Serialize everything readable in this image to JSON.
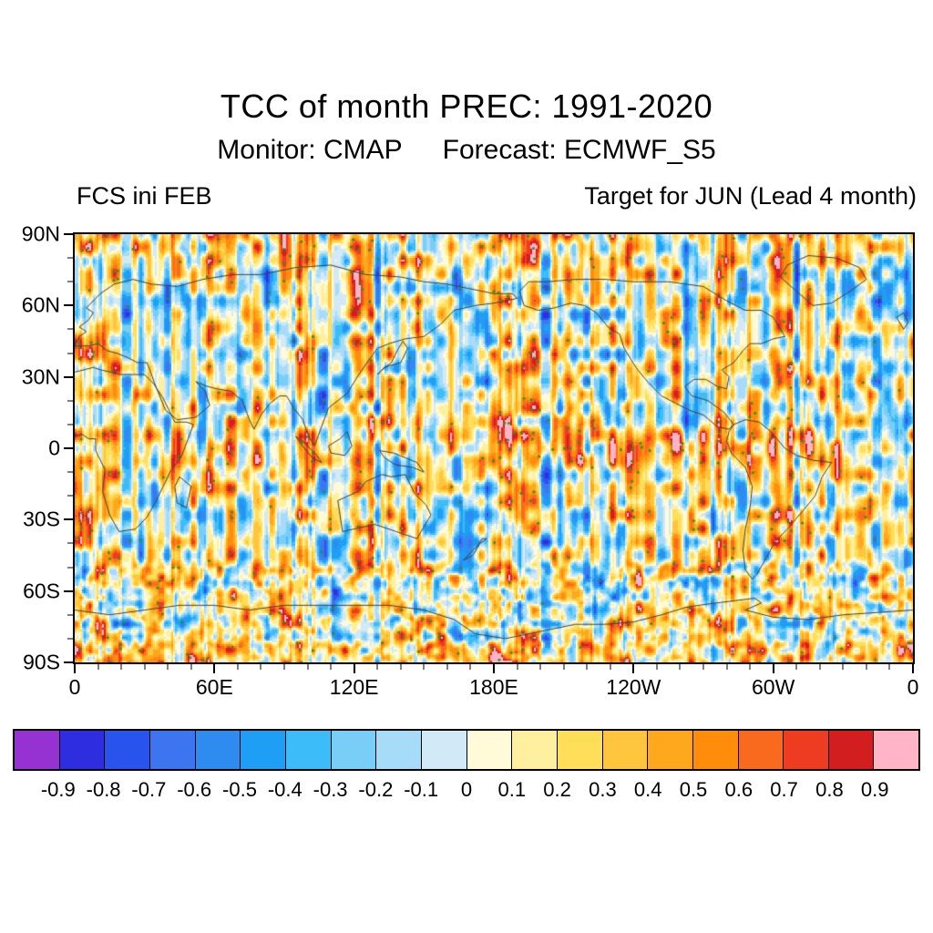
{
  "title": "TCC of month PREC: 1991-2020",
  "subtitle": {
    "monitor": "Monitor: CMAP",
    "forecast": "Forecast: ECMWF_S5"
  },
  "panel": {
    "init_label": "FCS ini FEB",
    "target_label": "Target for JUN (Lead 4 month)"
  },
  "chart_data": {
    "type": "heatmap",
    "subtype": "filled-contour-global-map",
    "projection": "equirectangular",
    "lon_range": [
      0,
      360
    ],
    "lat_range": [
      -90,
      90
    ],
    "x_ticks": [
      {
        "lon": 0,
        "label": "0"
      },
      {
        "lon": 60,
        "label": "60E"
      },
      {
        "lon": 120,
        "label": "120E"
      },
      {
        "lon": 180,
        "label": "180E"
      },
      {
        "lon": 240,
        "label": "120W"
      },
      {
        "lon": 300,
        "label": "60W"
      },
      {
        "lon": 360,
        "label": "0"
      }
    ],
    "y_ticks": [
      {
        "lat": 90,
        "label": "90N"
      },
      {
        "lat": 60,
        "label": "60N"
      },
      {
        "lat": 30,
        "label": "30N"
      },
      {
        "lat": 0,
        "label": "0"
      },
      {
        "lat": -30,
        "label": "30S"
      },
      {
        "lat": -60,
        "label": "60S"
      },
      {
        "lat": -90,
        "label": "90S"
      }
    ],
    "colorbar": {
      "levels": [
        -0.9,
        -0.8,
        -0.7,
        -0.6,
        -0.5,
        -0.4,
        -0.3,
        -0.2,
        -0.1,
        0,
        0.1,
        0.2,
        0.3,
        0.4,
        0.5,
        0.6,
        0.7,
        0.8,
        0.9
      ],
      "labels": [
        "-0.9",
        "-0.8",
        "-0.7",
        "-0.6",
        "-0.5",
        "-0.4",
        "-0.3",
        "-0.2",
        "-0.1",
        "0",
        "0.1",
        "0.2",
        "0.3",
        "0.4",
        "0.5",
        "0.6",
        "0.7",
        "0.8",
        "0.9"
      ],
      "colors": [
        "#9632D2",
        "#2E2EE0",
        "#2853EC",
        "#3D74F0",
        "#2E8CF0",
        "#1E9EF5",
        "#3CBCF8",
        "#79CEF8",
        "#A6DCF7",
        "#D2EAF8",
        "#FFFBD8",
        "#FFF0A0",
        "#FFDE5A",
        "#FFC53C",
        "#FFA81E",
        "#FF8C0A",
        "#F96A1E",
        "#EE3C23",
        "#D21E1E",
        "#FFB4C8"
      ]
    },
    "stipple": {
      "color": "#1E9B1E"
    },
    "coastline_color": "#404040",
    "field_summary": "Temporal correlation coefficient of monthly precipitation: strong positive (red) band along the equatorial Pacific extending into the Atlantic, mostly weak-positive (yellow/orange) values elsewhere with scattered negative (blue) patches; green stippling over high-magnitude regions",
    "coastlines": [
      [
        [
          0,
          32
        ],
        [
          8,
          34
        ],
        [
          11,
          33
        ],
        [
          20,
          31
        ],
        [
          30,
          31
        ],
        [
          32,
          29
        ],
        [
          34,
          27
        ],
        [
          38,
          21
        ],
        [
          43,
          11
        ],
        [
          48,
          11
        ],
        [
          51,
          10
        ],
        [
          46,
          -3
        ],
        [
          41,
          -10
        ],
        [
          38,
          -16
        ],
        [
          35,
          -22
        ],
        [
          31,
          -29
        ],
        [
          26,
          -34
        ],
        [
          19,
          -35
        ],
        [
          15,
          -28
        ],
        [
          12,
          -18
        ],
        [
          13,
          -9
        ],
        [
          9,
          -1
        ],
        [
          9,
          4
        ],
        [
          6,
          4
        ],
        [
          3,
          6
        ],
        [
          0,
          5
        ]
      ],
      [
        [
          0,
          43
        ],
        [
          2,
          47
        ],
        [
          5,
          49
        ],
        [
          2,
          51
        ],
        [
          6,
          54
        ],
        [
          8,
          57
        ],
        [
          5,
          59
        ],
        [
          11,
          65
        ],
        [
          17,
          69
        ],
        [
          25,
          71
        ],
        [
          33,
          69
        ],
        [
          44,
          68
        ],
        [
          55,
          71
        ],
        [
          68,
          73
        ],
        [
          80,
          73
        ],
        [
          95,
          76
        ],
        [
          110,
          77
        ],
        [
          125,
          73
        ],
        [
          140,
          72
        ],
        [
          150,
          70
        ],
        [
          160,
          69
        ],
        [
          170,
          67
        ],
        [
          180,
          65
        ],
        [
          188,
          65
        ],
        [
          190,
          63
        ],
        [
          180,
          61
        ],
        [
          172,
          60
        ],
        [
          163,
          58
        ],
        [
          157,
          52
        ],
        [
          150,
          47
        ],
        [
          142,
          46
        ],
        [
          135,
          44
        ],
        [
          130,
          42
        ],
        [
          127,
          38
        ],
        [
          122,
          31
        ],
        [
          117,
          23
        ],
        [
          109,
          17
        ],
        [
          106,
          9
        ],
        [
          103,
          1
        ],
        [
          100,
          6
        ],
        [
          98,
          12
        ],
        [
          94,
          17
        ],
        [
          91,
          22
        ],
        [
          88,
          22
        ],
        [
          84,
          19
        ],
        [
          80,
          14
        ],
        [
          77,
          8
        ],
        [
          75,
          12
        ],
        [
          72,
          20
        ],
        [
          67,
          24
        ],
        [
          61,
          25
        ],
        [
          57,
          26
        ],
        [
          52,
          28
        ],
        [
          56,
          24
        ],
        [
          58,
          18
        ],
        [
          52,
          13
        ],
        [
          44,
          12
        ],
        [
          39,
          16
        ],
        [
          34,
          28
        ],
        [
          33,
          31
        ],
        [
          31,
          36
        ],
        [
          27,
          36
        ],
        [
          23,
          38
        ],
        [
          18,
          40
        ],
        [
          14,
          41
        ],
        [
          10,
          44
        ],
        [
          6,
          43
        ],
        [
          3,
          43
        ],
        [
          0,
          43
        ]
      ],
      [
        [
          113,
          -22
        ],
        [
          115,
          -35
        ],
        [
          129,
          -32
        ],
        [
          138,
          -35
        ],
        [
          147,
          -38
        ],
        [
          153,
          -28
        ],
        [
          151,
          -24
        ],
        [
          146,
          -19
        ],
        [
          142,
          -11
        ],
        [
          136,
          -12
        ],
        [
          132,
          -11
        ],
        [
          125,
          -14
        ],
        [
          122,
          -18
        ],
        [
          113,
          -22
        ]
      ],
      [
        [
          191,
          66
        ],
        [
          193,
          60
        ],
        [
          199,
          58
        ],
        [
          206,
          59
        ],
        [
          213,
          61
        ],
        [
          219,
          60
        ],
        [
          224,
          57
        ],
        [
          229,
          51
        ],
        [
          234,
          48
        ],
        [
          236,
          42
        ],
        [
          241,
          34
        ],
        [
          246,
          28
        ],
        [
          252,
          22
        ],
        [
          258,
          19
        ],
        [
          264,
          16
        ],
        [
          270,
          14
        ],
        [
          276,
          9
        ],
        [
          281,
          8
        ],
        [
          283,
          10
        ],
        [
          279,
          15
        ],
        [
          272,
          20
        ],
        [
          265,
          22
        ],
        [
          262,
          26
        ],
        [
          266,
          29
        ],
        [
          271,
          29
        ],
        [
          276,
          26
        ],
        [
          280,
          25
        ],
        [
          281,
          30
        ],
        [
          278,
          33
        ],
        [
          283,
          36
        ],
        [
          287,
          41
        ],
        [
          290,
          44
        ],
        [
          295,
          44
        ],
        [
          300,
          46
        ],
        [
          305,
          47
        ],
        [
          300,
          55
        ],
        [
          295,
          58
        ],
        [
          288,
          58
        ],
        [
          280,
          62
        ],
        [
          270,
          68
        ],
        [
          255,
          70
        ],
        [
          240,
          70
        ],
        [
          228,
          71
        ],
        [
          215,
          71
        ],
        [
          203,
          70
        ],
        [
          195,
          70
        ],
        [
          191,
          66
        ]
      ],
      [
        [
          283,
          10
        ],
        [
          288,
          12
        ],
        [
          294,
          11
        ],
        [
          299,
          7
        ],
        [
          305,
          0
        ],
        [
          310,
          -3
        ],
        [
          317,
          -5
        ],
        [
          325,
          -6
        ],
        [
          321,
          -12
        ],
        [
          318,
          -20
        ],
        [
          313,
          -26
        ],
        [
          306,
          -34
        ],
        [
          301,
          -39
        ],
        [
          297,
          -46
        ],
        [
          293,
          -53
        ],
        [
          291,
          -55
        ],
        [
          288,
          -51
        ],
        [
          287,
          -43
        ],
        [
          288,
          -34
        ],
        [
          290,
          -25
        ],
        [
          291,
          -16
        ],
        [
          288,
          -8
        ],
        [
          282,
          -2
        ],
        [
          280,
          3
        ],
        [
          281,
          7
        ],
        [
          283,
          10
        ]
      ],
      [
        [
          317,
          60
        ],
        [
          310,
          66
        ],
        [
          303,
          72
        ],
        [
          306,
          77
        ],
        [
          315,
          81
        ],
        [
          327,
          80
        ],
        [
          337,
          76
        ],
        [
          340,
          71
        ],
        [
          333,
          66
        ],
        [
          325,
          61
        ],
        [
          317,
          60
        ]
      ],
      [
        [
          0,
          -68
        ],
        [
          15,
          -70
        ],
        [
          30,
          -68
        ],
        [
          45,
          -66
        ],
        [
          60,
          -66
        ],
        [
          75,
          -68
        ],
        [
          90,
          -66
        ],
        [
          105,
          -66
        ],
        [
          120,
          -66
        ],
        [
          135,
          -66
        ],
        [
          150,
          -68
        ],
        [
          163,
          -72
        ],
        [
          172,
          -78
        ],
        [
          185,
          -80
        ],
        [
          200,
          -77
        ],
        [
          215,
          -74
        ],
        [
          228,
          -74
        ],
        [
          240,
          -73
        ],
        [
          252,
          -70
        ],
        [
          262,
          -67
        ],
        [
          268,
          -66
        ],
        [
          292,
          -63
        ],
        [
          295,
          -65
        ],
        [
          288,
          -68
        ],
        [
          300,
          -71
        ],
        [
          315,
          -72
        ],
        [
          330,
          -70
        ],
        [
          345,
          -69
        ],
        [
          360,
          -68
        ]
      ],
      [
        [
          45,
          -12
        ],
        [
          50,
          -16
        ],
        [
          48,
          -25
        ],
        [
          44,
          -23
        ],
        [
          43,
          -16
        ],
        [
          45,
          -12
        ]
      ],
      [
        [
          356,
          50
        ],
        [
          358,
          53
        ],
        [
          356,
          57
        ],
        [
          353,
          55
        ],
        [
          356,
          50
        ]
      ],
      [
        [
          140,
          36
        ],
        [
          143,
          42
        ],
        [
          141,
          45
        ],
        [
          139,
          42
        ],
        [
          136,
          36
        ],
        [
          132,
          33
        ],
        [
          130,
          31
        ],
        [
          133,
          34
        ],
        [
          140,
          36
        ]
      ],
      [
        [
          167,
          -47
        ],
        [
          170,
          -44
        ],
        [
          173,
          -41
        ],
        [
          175,
          -38
        ],
        [
          177,
          -38
        ],
        [
          174,
          -40
        ],
        [
          171,
          -45
        ],
        [
          167,
          -47
        ]
      ],
      [
        [
          109,
          1
        ],
        [
          114,
          4
        ],
        [
          117,
          7
        ],
        [
          119,
          1
        ],
        [
          116,
          -3
        ],
        [
          110,
          -2
        ],
        [
          109,
          1
        ]
      ],
      [
        [
          95,
          5
        ],
        [
          99,
          2
        ],
        [
          104,
          -3
        ],
        [
          106,
          -6
        ],
        [
          102,
          -4
        ],
        [
          97,
          2
        ],
        [
          95,
          5
        ]
      ],
      [
        [
          131,
          -1
        ],
        [
          137,
          -2
        ],
        [
          142,
          -4
        ],
        [
          147,
          -6
        ],
        [
          150,
          -10
        ],
        [
          145,
          -8
        ],
        [
          138,
          -7
        ],
        [
          133,
          -4
        ],
        [
          131,
          -1
        ]
      ]
    ]
  }
}
